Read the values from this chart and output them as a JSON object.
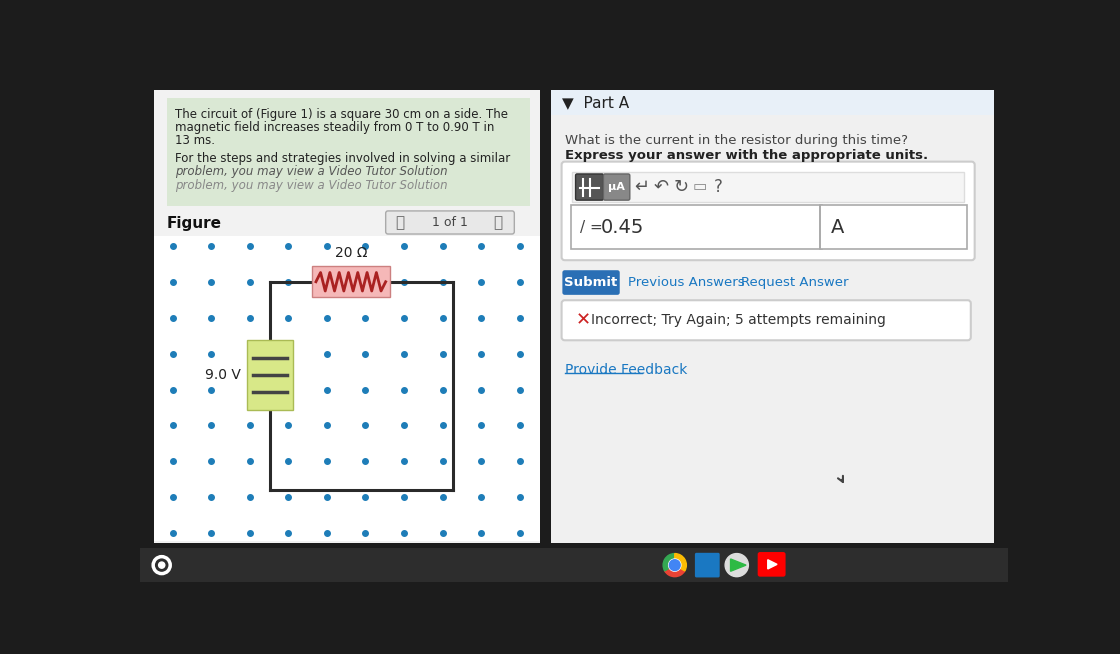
{
  "bg_color": "#1c1c1c",
  "left_panel_bg": "#f2f2f2",
  "right_panel_bg": "#f0f0f0",
  "prob_box_bg": "#dae8d4",
  "problem_text_line1": "The circuit of (Figure 1) is a square 30 cm on a side. The",
  "problem_text_line2": "magnetic field increases steadily from 0 T to 0.90 T in",
  "problem_text_line3": "13 ms.",
  "problem_text_line4": "For the steps and strategies involved in solving a similar",
  "problem_text_line5": "problem, you may view a Video Tutor Solution",
  "figure_label": "Figure",
  "nav_text": "1 of 1",
  "resistor_label": "20 Ω",
  "battery_label": "9.0 V",
  "part_a_label": "Part A",
  "question_line1": "What is the current in the resistor during this time?",
  "question_line2": "Express your answer with the appropriate units.",
  "answer_value": "0.45",
  "answer_unit": "A",
  "current_label": "/ =",
  "submit_text": "Submit",
  "prev_answers_text": "Previous Answers",
  "request_answer_text": "Request Answer",
  "incorrect_text": "Incorrect; Try Again; 5 attempts remaining",
  "feedback_text": "Provide Feedback",
  "dot_color": "#1e7db8",
  "circuit_line_color": "#2a2a2a",
  "resistor_fill": "#f5b8b8",
  "resistor_edge": "#cc8080",
  "battery_fill": "#d8e888",
  "battery_edge": "#aabb55",
  "submit_btn_color": "#2a6fb5",
  "part_a_bg": "#e8f0f8",
  "taskbar_color": "#2d2d2d"
}
